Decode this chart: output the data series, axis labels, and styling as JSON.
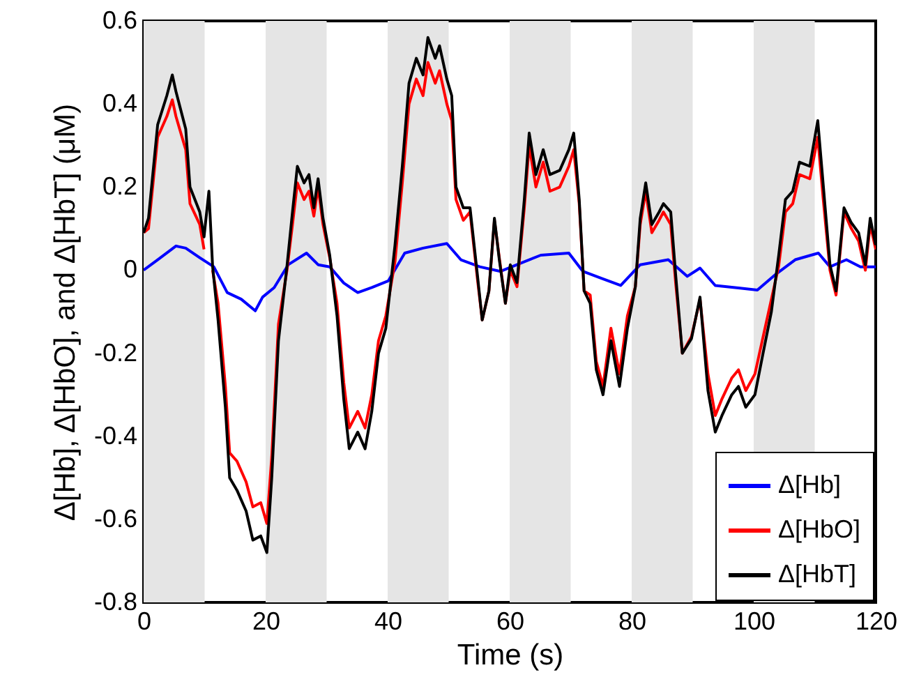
{
  "chart_data": {
    "type": "line",
    "xlabel": "Time (s)",
    "ylabel": "Δ[Hb], Δ[HbO], and Δ[HbT] (μM)",
    "xlim": [
      0,
      120
    ],
    "xticks": [
      0,
      20,
      40,
      60,
      80,
      100,
      120
    ],
    "ylim": [
      -0.8,
      0.6
    ],
    "yticks": [
      -0.8,
      -0.6,
      -0.4,
      -0.2,
      0,
      0.2,
      0.4,
      0.6
    ],
    "legend": "bottom right",
    "line_style": "solid",
    "marker": "none",
    "bands": [
      {
        "axis": "x",
        "from": 0,
        "to": 10,
        "color": "#e5e5e5"
      },
      {
        "axis": "x",
        "from": 20,
        "to": 30,
        "color": "#e5e5e5"
      },
      {
        "axis": "x",
        "from": 40,
        "to": 50,
        "color": "#e5e5e5"
      },
      {
        "axis": "x",
        "from": 60,
        "to": 70,
        "color": "#e5e5e5"
      },
      {
        "axis": "x",
        "from": 80,
        "to": 90,
        "color": "#e5e5e5"
      },
      {
        "axis": "x",
        "from": 100,
        "to": 110,
        "color": "#e5e5e5"
      }
    ],
    "series": [
      {
        "name": "Δ[Hb]",
        "color": "#0000ff",
        "x": [
          0,
          2.3,
          5.3,
          6.9,
          9.2,
          11.5,
          13.7,
          16,
          18.3,
          19.5,
          21.4,
          23.7,
          26.7,
          28.6,
          30.5,
          32.8,
          35.1,
          37.4,
          40.1,
          42.8,
          45.8,
          49.7,
          52,
          55.1,
          58.5,
          61.2,
          65.1,
          69.7,
          72,
          75.1,
          78.2,
          81.4,
          86,
          89.1,
          91.2,
          93.7,
          97.5,
          100.6,
          103.7,
          106.8,
          110.6,
          112.5,
          115.2,
          117.5,
          120
        ],
        "values": [
          0,
          0.025,
          0.058,
          0.053,
          0.03,
          0.008,
          -0.054,
          -0.07,
          -0.098,
          -0.065,
          -0.042,
          0.013,
          0.041,
          0.013,
          0.008,
          -0.031,
          -0.054,
          -0.042,
          -0.026,
          0.041,
          0.053,
          0.064,
          0.025,
          0.008,
          -0.003,
          0.013,
          0.036,
          0.041,
          -0.003,
          -0.02,
          -0.037,
          0.013,
          0.025,
          -0.015,
          0.005,
          -0.037,
          -0.043,
          -0.048,
          -0.009,
          0.025,
          0.041,
          0.008,
          0.025,
          0.008,
          0.008
        ]
      },
      {
        "name": "Δ[HbO]",
        "color": "#ff0000",
        "x": [
          0,
          0.8,
          2.3,
          3.8,
          4.7,
          5.3,
          6.9,
          7.6,
          9.2,
          9.9,
          10.7,
          11.3,
          12.2,
          13.4,
          14.1,
          15.3,
          16.8,
          17.9,
          19.2,
          20.2,
          21,
          22.1,
          23.5,
          24.4,
          25.2,
          26.3,
          27.1,
          27.9,
          28.6,
          29.4,
          30.5,
          31.7,
          32.8,
          33.7,
          35.1,
          36.3,
          37.4,
          38.5,
          39.7,
          41.2,
          42.4,
          43.5,
          44.7,
          45.8,
          46.6,
          47.8,
          48.5,
          49.7,
          50.5,
          51.2,
          52.4,
          53.5,
          54.7,
          55.5,
          56.6,
          57.5,
          58.3,
          59.3,
          60.1,
          61.2,
          62.4,
          63.2,
          64.3,
          65.5,
          66.6,
          68.2,
          69.7,
          70.5,
          71.4,
          72.2,
          73.2,
          74.2,
          75.3,
          76.6,
          78,
          79.3,
          80.6,
          81.4,
          82.3,
          83.3,
          84.5,
          85.2,
          86.4,
          87.2,
          88.3,
          89.8,
          91.2,
          92.5,
          93.7,
          94.8,
          96.4,
          97.5,
          98.7,
          100.2,
          101.4,
          102.9,
          104.1,
          105.2,
          106.4,
          107.5,
          109.2,
          110.5,
          111.4,
          112.5,
          113.5,
          114.8,
          116,
          117.2,
          118.3,
          119.1,
          120
        ],
        "values": [
          0.09,
          0.1,
          0.32,
          0.37,
          0.41,
          0.37,
          0.29,
          0.16,
          0.11,
          0.05,
          null,
          0,
          -0.08,
          -0.28,
          -0.44,
          -0.46,
          -0.51,
          -0.57,
          -0.56,
          -0.61,
          -0.45,
          -0.13,
          0,
          0.11,
          0.21,
          0.17,
          0.19,
          0.13,
          0.2,
          0.11,
          0.03,
          -0.08,
          -0.27,
          -0.38,
          -0.34,
          -0.38,
          -0.3,
          -0.17,
          -0.11,
          0.02,
          0.21,
          0.4,
          0.46,
          0.42,
          0.5,
          0.45,
          0.48,
          0.4,
          0.36,
          0.17,
          0.12,
          0.14,
          -0.02,
          -0.12,
          -0.05,
          0.12,
          0.03,
          -0.08,
          0,
          -0.04,
          0.15,
          0.3,
          0.2,
          0.26,
          0.19,
          0.2,
          0.25,
          0.29,
          0.16,
          -0.05,
          -0.06,
          -0.22,
          -0.28,
          -0.14,
          -0.25,
          -0.11,
          -0.04,
          0.11,
          0.19,
          0.09,
          0.12,
          0.14,
          0.11,
          -0.03,
          -0.2,
          -0.16,
          -0.07,
          -0.25,
          -0.35,
          -0.31,
          -0.26,
          -0.24,
          -0.29,
          -0.25,
          -0.17,
          -0.07,
          0.01,
          0.14,
          0.16,
          0.23,
          0.22,
          0.32,
          0.17,
          0,
          -0.06,
          0.14,
          0.1,
          0.07,
          0,
          0.11,
          0.05
        ]
      },
      {
        "name": "Δ[HbT]",
        "color": "#000000",
        "x": [
          0,
          0.8,
          2.3,
          3.8,
          4.7,
          5.3,
          6.9,
          7.6,
          9.2,
          9.9,
          10.7,
          11.3,
          12.2,
          13.4,
          14.1,
          15.3,
          16.8,
          17.9,
          19.2,
          20.2,
          21,
          22.1,
          23.5,
          24.4,
          25.2,
          26.3,
          27.1,
          27.9,
          28.6,
          29.4,
          30.5,
          31.7,
          32.8,
          33.7,
          35.1,
          36.3,
          37.4,
          38.5,
          39.7,
          41.2,
          42.4,
          43.5,
          44.7,
          45.8,
          46.6,
          47.8,
          48.5,
          49.7,
          50.5,
          51.2,
          52.4,
          53.5,
          54.7,
          55.5,
          56.6,
          57.5,
          58.3,
          59.3,
          60.1,
          61.2,
          62.4,
          63.2,
          64.3,
          65.5,
          66.6,
          68.2,
          69.7,
          70.5,
          71.4,
          72.2,
          73.2,
          74.2,
          75.3,
          76.6,
          78,
          79.3,
          80.6,
          81.4,
          82.3,
          83.3,
          84.5,
          85.2,
          86.4,
          87.2,
          88.3,
          89.8,
          91.2,
          92.5,
          93.7,
          94.8,
          96.4,
          97.5,
          98.7,
          100.2,
          101.4,
          102.9,
          104.1,
          105.2,
          106.4,
          107.5,
          109.2,
          110.5,
          111.4,
          112.5,
          113.5,
          114.8,
          116,
          117.2,
          118.3,
          119.1,
          120
        ],
        "values": [
          0.09,
          0.125,
          0.35,
          0.42,
          0.47,
          0.43,
          0.34,
          0.2,
          0.14,
          0.08,
          0.19,
          0.01,
          -0.12,
          -0.33,
          -0.5,
          -0.53,
          -0.58,
          -0.65,
          -0.64,
          -0.68,
          -0.5,
          -0.17,
          0.01,
          0.14,
          0.25,
          0.21,
          0.23,
          0.15,
          0.22,
          0.125,
          0.036,
          -0.11,
          -0.31,
          -0.43,
          -0.39,
          -0.43,
          -0.34,
          -0.2,
          -0.14,
          0.06,
          0.25,
          0.45,
          0.51,
          0.47,
          0.56,
          0.51,
          0.54,
          0.46,
          0.42,
          0.2,
          0.15,
          0.15,
          -0.01,
          -0.12,
          -0.05,
          0.125,
          0.025,
          -0.08,
          0.013,
          -0.03,
          0.17,
          0.33,
          0.23,
          0.29,
          0.23,
          0.24,
          0.29,
          0.33,
          0.17,
          -0.05,
          -0.08,
          -0.24,
          -0.3,
          -0.17,
          -0.28,
          -0.14,
          -0.04,
          0.125,
          0.21,
          0.11,
          0.14,
          0.16,
          0.14,
          -0.01,
          -0.2,
          -0.165,
          -0.065,
          -0.29,
          -0.39,
          -0.35,
          -0.3,
          -0.28,
          -0.33,
          -0.3,
          -0.21,
          -0.1,
          0.036,
          0.17,
          0.19,
          0.26,
          0.25,
          0.36,
          0.205,
          0.013,
          -0.05,
          0.15,
          0.114,
          0.09,
          0.013,
          0.125,
          0.06
        ]
      }
    ]
  }
}
